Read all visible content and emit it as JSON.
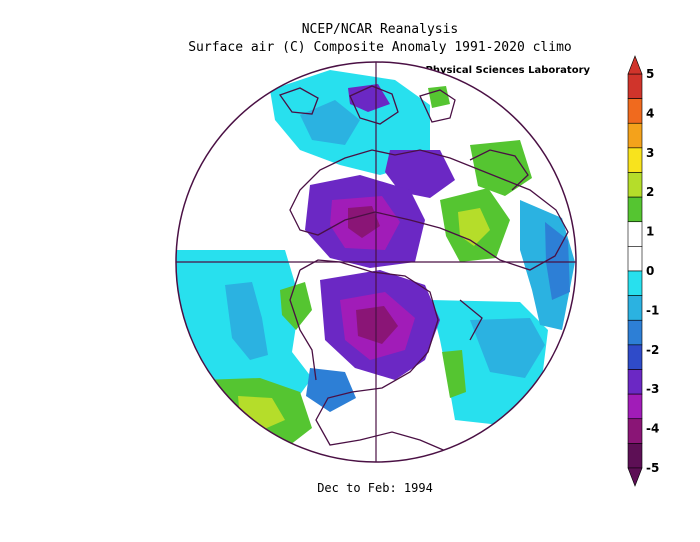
{
  "header": {
    "line1": "NCEP/NCAR Reanalysis",
    "line2": "Surface air (C) Composite Anomaly 1991-2020 climo",
    "credit": "NOAA Physical Sciences Laboratory"
  },
  "footer": {
    "period": "Dec to Feb: 1994"
  },
  "colorbar": {
    "labels": [
      "5",
      "4",
      "3",
      "2",
      "1",
      "0",
      "-1",
      "-2",
      "-3",
      "-4",
      "-5"
    ],
    "colors": [
      "#d0342b",
      "#f06a1e",
      "#f4a21b",
      "#f8e31d",
      "#b5dd2a",
      "#55c531",
      "#ffffff",
      "#ffffff",
      "#28e0ee",
      "#2bb2e1",
      "#2d7fd6",
      "#2f4bc9",
      "#6b28c4",
      "#a11cb8",
      "#8a1576",
      "#5d0f55"
    ]
  },
  "map": {
    "projection": "north-polar-stereographic",
    "cold_fill": "#6b28c4",
    "coast_color": "#4a1044"
  }
}
